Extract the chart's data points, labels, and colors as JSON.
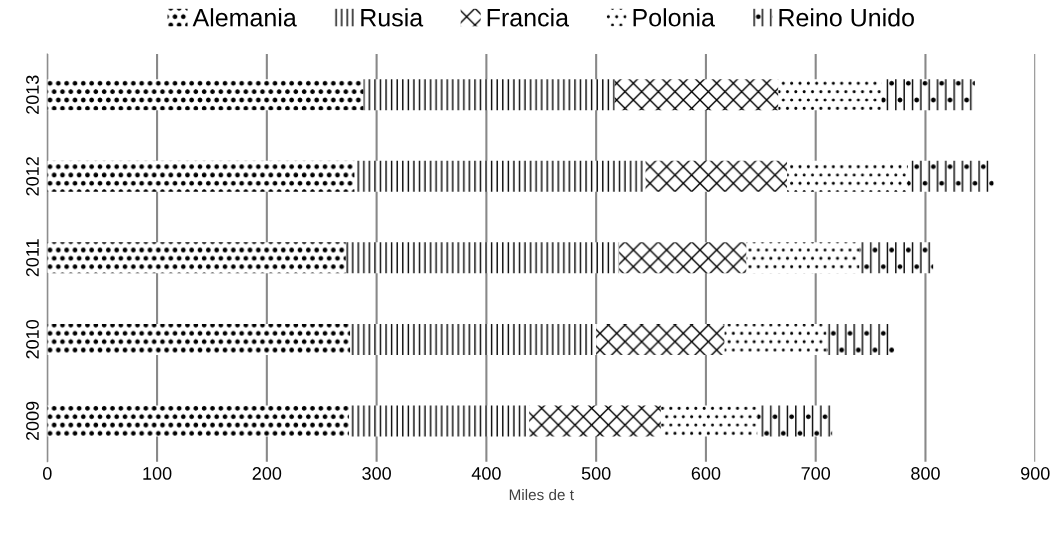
{
  "chart_data": {
    "type": "bar",
    "orientation": "horizontal",
    "stacked": true,
    "xlabel": "Miles de t",
    "categories": [
      "2013",
      "2012",
      "2011",
      "2010",
      "2009"
    ],
    "series": [
      {
        "name": "Alemania",
        "color": "#000000",
        "values": [
          288,
          280,
          272,
          276,
          275
        ]
      },
      {
        "name": "Rusia",
        "color": "#000000",
        "values": [
          229,
          265,
          249,
          224,
          164
        ]
      },
      {
        "name": "Francia",
        "color": "#000000",
        "values": [
          149,
          129,
          116,
          117,
          120
        ]
      },
      {
        "name": "Polonia",
        "color": "#000000",
        "values": [
          94,
          110,
          103,
          93,
          88
        ]
      },
      {
        "name": "Reino Unido",
        "color": "#000000",
        "values": [
          85,
          78,
          67,
          62,
          68
        ]
      }
    ],
    "xlim": [
      0,
      900
    ],
    "xticks": [
      0,
      100,
      200,
      300,
      400,
      500,
      600,
      700,
      800,
      900
    ],
    "grid": "x",
    "legend": "top"
  }
}
